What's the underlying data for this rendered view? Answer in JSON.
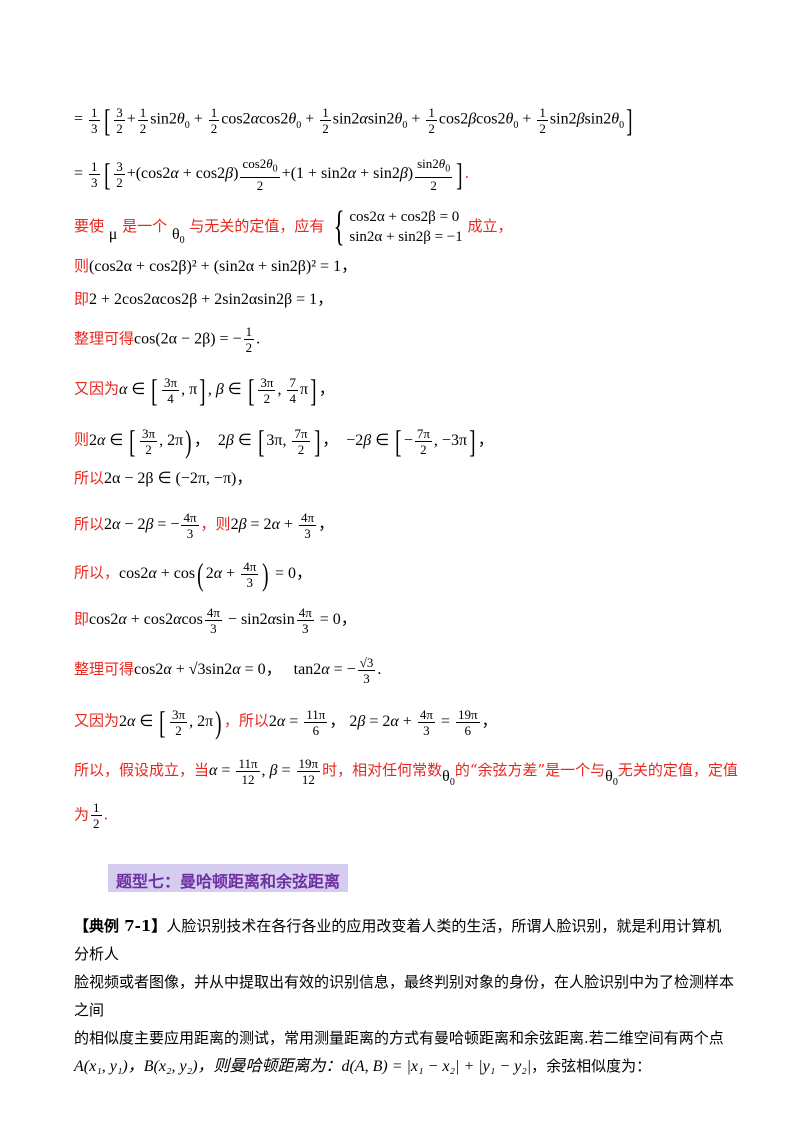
{
  "lines": {
    "l1": "=",
    "l2": "=",
    "l3_text1": "要使",
    "l3_mu": "μ",
    "l3_text2": "是一个",
    "l3_theta": "θ",
    "l3_text3": "与无关的定值，应有",
    "l3_eq1": "cos2α + cos2β = 0",
    "l3_eq2": "sin2α + sin2β = −1",
    "l3_text4": "成立，",
    "l4_prefix": "则",
    "l4_expr": "(cos2α + cos2β)² + (sin2α + sin2β)² = 1，",
    "l5_prefix": "即",
    "l5_expr": "2 + 2cos2αcos2β + 2sin2αsin2β = 1，",
    "l6_prefix": "整理可得",
    "l6_expr": "cos(2α − 2β) = −",
    "l7_prefix": "又因为",
    "l8_prefix": "则",
    "l9_prefix": "所以",
    "l9_expr": "2α − 2β ∈ (−2π, −π)，",
    "l10_prefix": "所以",
    "l10_mid": "，则",
    "l11_prefix": "所以，",
    "l12_prefix": "即",
    "l13_prefix": "整理可得",
    "l14_prefix": "又因为",
    "l14_mid": "，所以",
    "l15_text1": "所以，假设成立，当",
    "l15_text2": "时，相对任何常数",
    "l15_text3": "的“余弦方差”是一个与",
    "l15_text4": "无关的定值，定值",
    "l16_text": "为"
  },
  "section": {
    "title": "题型七：曼哈顿距离和余弦距离"
  },
  "example": {
    "label": "【典例 7-1】",
    "p1": "人脸识别技术在各行各业的应用改变着人类的生活，所谓人脸识别，就是利用计算机分析人",
    "p2": "脸视频或者图像，并从中提取出有效的识别信息，最终判别对象的身份，在人脸识别中为了检测样本之间",
    "p3": "的相似度主要应用距离的测试，常用测量距离的方式有曼哈顿距离和余弦距离.若二维空间有两个点",
    "p4_a": "A(x₁, y₁)，B(x₂, y₂)，则曼哈顿距离为：",
    "p4_b": "d(A, B) = |x₁ − x₂| + |y₁ − y₂|",
    "p4_c": "，余弦相似度为："
  }
}
